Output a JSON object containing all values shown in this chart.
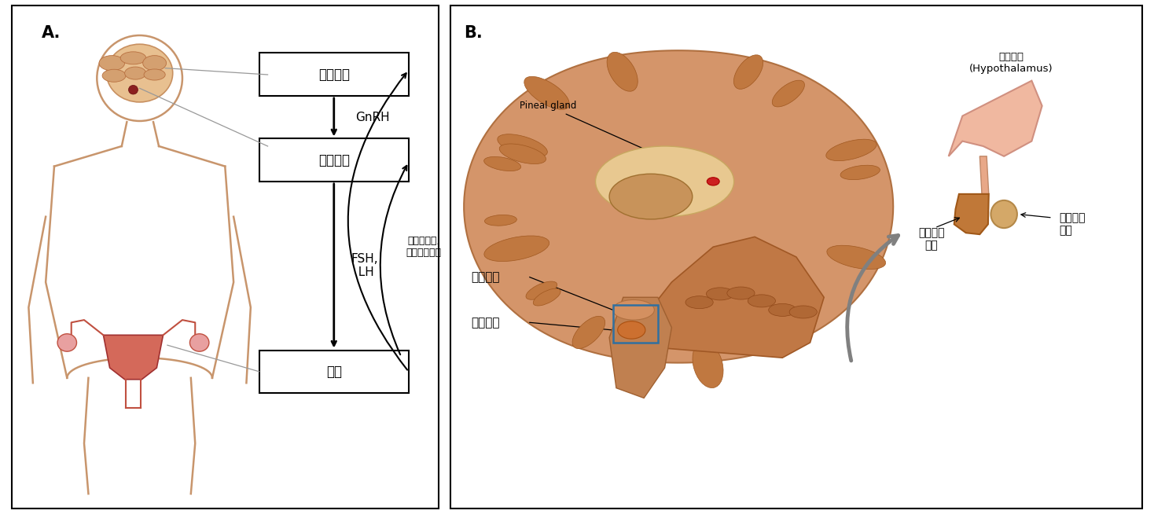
{
  "fig_width": 14.68,
  "fig_height": 6.54,
  "bg_color": "#ffffff",
  "panel_A_label": "A.",
  "panel_B_label": "B.",
  "box_hypothalamus": "시상하부",
  "box_pituitary": "뇌하수체",
  "box_ovary": "난소",
  "label_GnRH": "GnRH",
  "label_FSH_LH": "FSH,\n  LH",
  "label_estrogen": "에스트로겐,\n프로게스테론",
  "label_pineal": "Pineal gland",
  "label_hypothalamus_B": "시상하부",
  "label_pituitary_B": "뇌하수체",
  "label_ant_pituitary": "뇌하수체\n전엽",
  "label_post_pituitary": "뇌하수체\n후엽",
  "label_hypothalamus_B2": "시상하부\n(Hypothalamus)",
  "body_color": "#c8956c",
  "brain_fill": "#e8b080",
  "brain_outline": "#c8906050",
  "uterus_color_main": "#d4695a",
  "uterus_color_light": "#e8a090"
}
